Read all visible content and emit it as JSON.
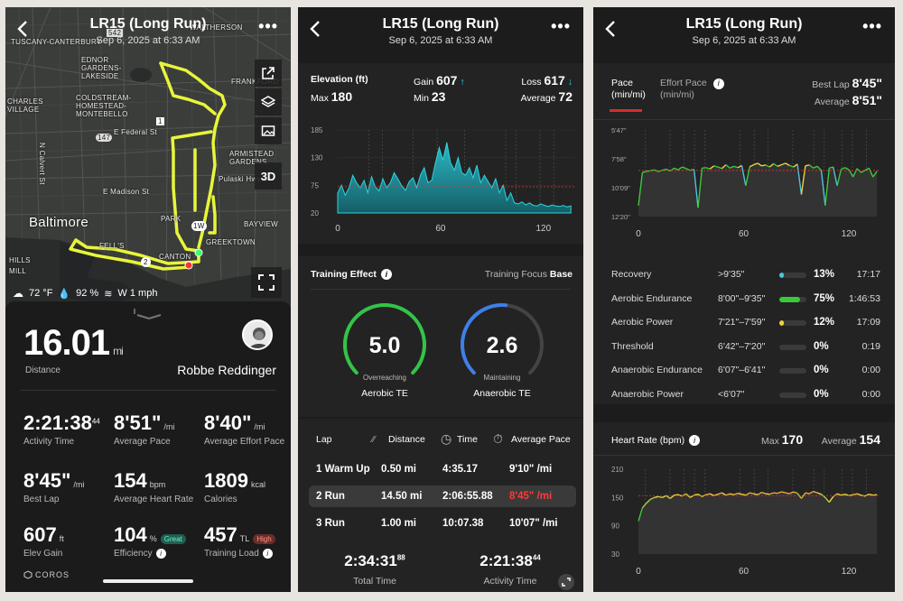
{
  "colors": {
    "accent_green": "#d7f53a",
    "cyan": "#2bd4e0",
    "red": "#ff3030",
    "bg": "#1c1c1c"
  },
  "header": {
    "title": "LR15 (Long Run)",
    "date": "Sep 6, 2025 at 6:33 AM"
  },
  "map": {
    "labels": [
      "TUSCANY-CANTERBURY",
      "WALTHERSON",
      "EDNOR GARDENS-LAKESIDE",
      "FRANKFORD",
      "COLDSTREAM-HOMESTEAD-MONTEBELLO",
      "CHARLES VILLAGE",
      "E Federal St",
      "ARMISTEAD GARDENS",
      "E Madison St",
      "Pulaski Hwy",
      "Baltimore",
      "PARK",
      "BAYVIEW",
      "GREEKTOWN",
      "FELL'S",
      "CANTON",
      "HILLS",
      "MILL",
      "N Calvert St",
      "147",
      "1",
      "1W",
      "2",
      "542"
    ],
    "buttons": [
      "share-icon",
      "layers-icon",
      "photo-icon",
      "3D",
      "expand-icon"
    ],
    "weather": {
      "temp": "72 °F",
      "humidity": "92 %",
      "wind": "W 1 mph"
    }
  },
  "summary": {
    "distance": "16.01",
    "distance_unit": "mi",
    "distance_label": "Distance",
    "user": "Robbe Reddinger",
    "stats": [
      {
        "value": "2:21:38",
        "sup": "44",
        "unit": "",
        "label": "Activity Time"
      },
      {
        "value": "8'51\"",
        "sup": "",
        "unit": "/mi",
        "label": "Average Pace"
      },
      {
        "value": "8'40\"",
        "sup": "",
        "unit": "/mi",
        "label": "Average Effort Pace"
      },
      {
        "value": "8'45\"",
        "sup": "",
        "unit": "/mi",
        "label": "Best Lap"
      },
      {
        "value": "154",
        "sup": "",
        "unit": "bpm",
        "label": "Average Heart Rate"
      },
      {
        "value": "1809",
        "sup": "",
        "unit": "kcal",
        "label": "Calories"
      },
      {
        "value": "607",
        "sup": "",
        "unit": "ft",
        "label": "Elev Gain"
      },
      {
        "value": "104",
        "sup": "",
        "unit": "%",
        "label": "Efficiency",
        "badge": "Great"
      },
      {
        "value": "457",
        "sup": "",
        "unit": "TL",
        "label": "Training Load",
        "badge": "High"
      }
    ],
    "brand": "COROS"
  },
  "elevation": {
    "title": "Elevation (ft)",
    "max_label": "Max",
    "max": "180",
    "gain_label": "Gain",
    "gain": "607",
    "min_label": "Min",
    "min": "23",
    "loss_label": "Loss",
    "loss": "617",
    "avg_label": "Average",
    "avg": "72",
    "yticks": [
      "185",
      "130",
      "75",
      "20"
    ],
    "xticks": [
      "0",
      "60",
      "120"
    ]
  },
  "training": {
    "title": "Training Effect",
    "focus_label": "Training Focus",
    "focus": "Base",
    "aerobic": {
      "value": "5.0",
      "status": "Overreaching",
      "label": "Aerobic TE",
      "fraction": 1.0
    },
    "anaerobic": {
      "value": "2.6",
      "status": "Maintaining",
      "label": "Anaerobic TE",
      "fraction": 0.52
    }
  },
  "laps": {
    "headers": [
      "Lap",
      "Distance",
      "Time",
      "Average Pace"
    ],
    "rows": [
      {
        "lap": "1 Warm Up",
        "distance": "0.50 mi",
        "time": "4:35.17",
        "pace": "9'10\" /mi"
      },
      {
        "lap": "2 Run",
        "distance": "14.50 mi",
        "time": "2:06:55.88",
        "pace": "8'45\" /mi"
      },
      {
        "lap": "3 Run",
        "distance": "1.00 mi",
        "time": "10:07.38",
        "pace": "10'07\" /mi"
      }
    ],
    "total_time": "2:34:31",
    "total_time_sup": "88",
    "total_label": "Total Time",
    "activity_time": "2:21:38",
    "activity_time_sup": "44",
    "activity_label": "Activity Time"
  },
  "pace": {
    "tab1_a": "Pace",
    "tab1_b": "(min/mi)",
    "tab2_a": "Effort Pace",
    "tab2_b": "(min/mi)",
    "best_label": "Best Lap",
    "best": "8'45\"",
    "avg_label": "Average",
    "avg": "8'51\"",
    "yticks": [
      "5'47\"",
      "7'58\"",
      "10'09\"",
      "12'20\""
    ],
    "xticks": [
      "0",
      "60",
      "120"
    ]
  },
  "zones": [
    {
      "name": "Recovery",
      "range": ">9'35\"",
      "pct": "13%",
      "time": "17:17",
      "fraction": 0.13,
      "color": "#4fc3e0"
    },
    {
      "name": "Aerobic Endurance",
      "range": "8'00\"–9'35\"",
      "pct": "75%",
      "time": "1:46:53",
      "fraction": 0.75,
      "color": "#3cc83c"
    },
    {
      "name": "Aerobic Power",
      "range": "7'21\"–7'59\"",
      "pct": "12%",
      "time": "17:09",
      "fraction": 0.12,
      "color": "#f0d43a"
    },
    {
      "name": "Threshold",
      "range": "6'42\"–7'20\"",
      "pct": "0%",
      "time": "0:19",
      "fraction": 0.0,
      "color": "#f09a3a"
    },
    {
      "name": "Anaerobic Endurance",
      "range": "6'07\"–6'41\"",
      "pct": "0%",
      "time": "0:00",
      "fraction": 0.0,
      "color": "#f05a3a"
    },
    {
      "name": "Anaerobic Power",
      "range": "<6'07\"",
      "pct": "0%",
      "time": "0:00",
      "fraction": 0.0,
      "color": "#d03030"
    }
  ],
  "heart": {
    "title": "Heart Rate (bpm)",
    "max_label": "Max",
    "max": "170",
    "avg_label": "Average",
    "avg": "154",
    "yticks": [
      "210",
      "150",
      "90",
      "30"
    ],
    "xticks": [
      "0",
      "60",
      "120"
    ]
  }
}
